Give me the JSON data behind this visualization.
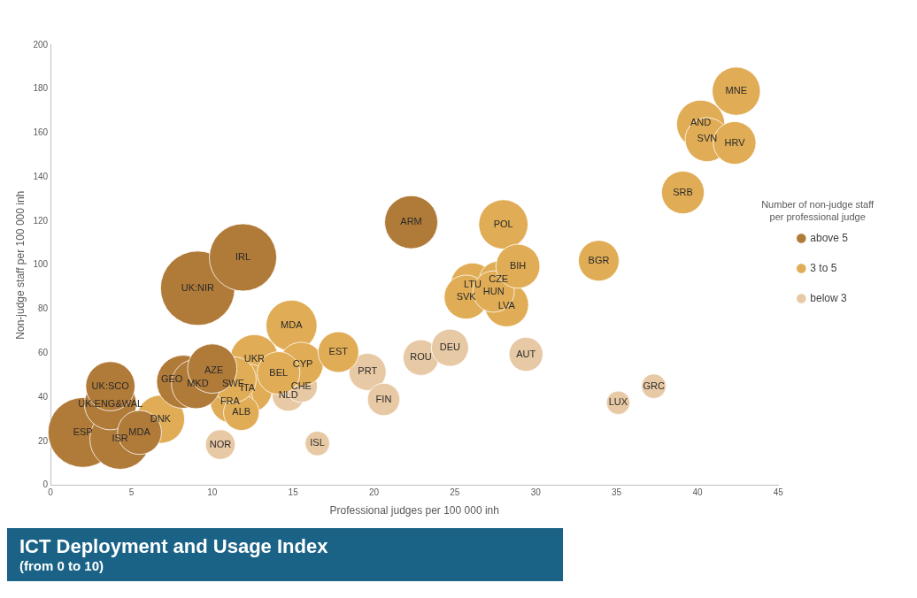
{
  "chart_data": {
    "type": "bubble",
    "xlabel": "Professional judges per 100 000 inh",
    "ylabel": "Non-judge staff per 100 000 inh",
    "legend_title": "Number of non-judge staff per professional judge",
    "xlim": [
      0,
      45
    ],
    "xticks": [
      0,
      5,
      10,
      15,
      20,
      25,
      30,
      35,
      40,
      45
    ],
    "ylim": [
      0,
      200
    ],
    "yticks": [
      0,
      20,
      40,
      60,
      80,
      100,
      120,
      140,
      160,
      180,
      200
    ],
    "grid": false,
    "legend": "right",
    "series": [
      {
        "name": "above 5",
        "color": "#b07a38",
        "x": [
          2,
          9.1,
          11.9,
          4.3,
          3.7,
          8.2,
          22.3,
          3.7,
          9,
          10,
          5.5
        ],
        "values": [
          24,
          89.5,
          103.5,
          21,
          37,
          47,
          119.5,
          45,
          46,
          53,
          24
        ],
        "sizes": [
          0.88,
          1,
          0.82,
          0.66,
          0.49,
          0.51,
          0.51,
          0.44,
          0.44,
          0.44,
          0.35
        ]
      },
      {
        "name": "3 to 5",
        "color": "#e0ac55",
        "x": [
          6.8,
          12.6,
          12.2,
          11.2,
          11.8,
          14.9,
          15.5,
          14.1,
          17.8,
          28,
          26.1,
          25.7,
          27.7,
          28.2,
          27.4,
          28.9,
          33.9,
          39.1,
          40.2,
          40.6,
          42.3,
          42.4,
          11.3
        ],
        "values": [
          30,
          57.5,
          44,
          38,
          33,
          72.5,
          55,
          51,
          60.5,
          118.5,
          91,
          85.5,
          93,
          82,
          88,
          99.5,
          102,
          133,
          164,
          157,
          155.5,
          179,
          48
        ],
        "sizes": [
          0.42,
          0.42,
          0.44,
          0.33,
          0.23,
          0.47,
          0.35,
          0.33,
          0.3,
          0.44,
          0.35,
          0.35,
          0.27,
          0.35,
          0.31,
          0.35,
          0.3,
          0.33,
          0.42,
          0.35,
          0.33,
          0.42,
          0.38
        ]
      },
      {
        "name": "below 3",
        "color": "#e8c9a5",
        "x": [
          14.7,
          15.5,
          19.6,
          20.6,
          10.5,
          16.5,
          22.9,
          24.7,
          29.4,
          35.1,
          37.3
        ],
        "values": [
          41,
          45,
          51.5,
          39,
          18.5,
          19,
          58,
          62.5,
          59.5,
          37.5,
          45
        ],
        "sizes": [
          0.19,
          0.19,
          0.25,
          0.19,
          0.16,
          0.11,
          0.23,
          0.25,
          0.21,
          0.1,
          0.11
        ]
      }
    ],
    "annotations": [
      {
        "text": "ESP",
        "x": 2,
        "y": 24
      },
      {
        "text": "ISR",
        "x": 4.3,
        "y": 21
      },
      {
        "text": "UK:ENG&WAL",
        "x": 3.7,
        "y": 37
      },
      {
        "text": "UK:SCO",
        "x": 3.7,
        "y": 45
      },
      {
        "text": "MDA",
        "x": 5.5,
        "y": 24
      },
      {
        "text": "GEO",
        "x": 7.5,
        "y": 48
      },
      {
        "text": "MKD",
        "x": 9.1,
        "y": 46
      },
      {
        "text": "AZE",
        "x": 10.1,
        "y": 52
      },
      {
        "text": "UK:NIR",
        "x": 9.1,
        "y": 89.5
      },
      {
        "text": "IRL",
        "x": 11.9,
        "y": 103.5
      },
      {
        "text": "ARM",
        "x": 22.3,
        "y": 119.5
      },
      {
        "text": "DNK",
        "x": 6.8,
        "y": 30
      },
      {
        "text": "UKR",
        "x": 12.6,
        "y": 57.5
      },
      {
        "text": "SWE",
        "x": 11.3,
        "y": 46
      },
      {
        "text": "ITA",
        "x": 12.2,
        "y": 44
      },
      {
        "text": "FRA",
        "x": 11.1,
        "y": 38
      },
      {
        "text": "ALB",
        "x": 11.8,
        "y": 33
      },
      {
        "text": "MDA",
        "x": 14.9,
        "y": 72.5
      },
      {
        "text": "CYP",
        "x": 15.6,
        "y": 55
      },
      {
        "text": "BEL",
        "x": 14.1,
        "y": 51
      },
      {
        "text": "EST",
        "x": 17.8,
        "y": 60.5
      },
      {
        "text": "POL",
        "x": 28,
        "y": 118.5
      },
      {
        "text": "LTU",
        "x": 26.1,
        "y": 91
      },
      {
        "text": "SVK",
        "x": 25.7,
        "y": 85.5
      },
      {
        "text": "CZE",
        "x": 27.7,
        "y": 93.5
      },
      {
        "text": "HUN",
        "x": 27.4,
        "y": 88
      },
      {
        "text": "LVA",
        "x": 28.2,
        "y": 81.5
      },
      {
        "text": "BIH",
        "x": 28.9,
        "y": 99.5
      },
      {
        "text": "BGR",
        "x": 33.9,
        "y": 102
      },
      {
        "text": "SRB",
        "x": 39.1,
        "y": 133
      },
      {
        "text": "AND",
        "x": 40.2,
        "y": 164.5
      },
      {
        "text": "SVN",
        "x": 40.6,
        "y": 157.5
      },
      {
        "text": "HRV",
        "x": 42.3,
        "y": 155.5
      },
      {
        "text": "MNE",
        "x": 42.4,
        "y": 179
      },
      {
        "text": "CHE",
        "x": 15.5,
        "y": 45
      },
      {
        "text": "NLD",
        "x": 14.7,
        "y": 41
      },
      {
        "text": "PRT",
        "x": 19.6,
        "y": 51.5
      },
      {
        "text": "FIN",
        "x": 20.6,
        "y": 39
      },
      {
        "text": "NOR",
        "x": 10.5,
        "y": 18.5
      },
      {
        "text": "ISL",
        "x": 16.5,
        "y": 19
      },
      {
        "text": "ROU",
        "x": 22.9,
        "y": 58
      },
      {
        "text": "DEU",
        "x": 24.7,
        "y": 62.5
      },
      {
        "text": "AUT",
        "x": 29.4,
        "y": 59.5
      },
      {
        "text": "LUX",
        "x": 35.1,
        "y": 37.5
      },
      {
        "text": "GRC",
        "x": 37.3,
        "y": 45
      },
      "ICT Deployment and Usage Index",
      "(from 0 to 10)"
    ]
  }
}
